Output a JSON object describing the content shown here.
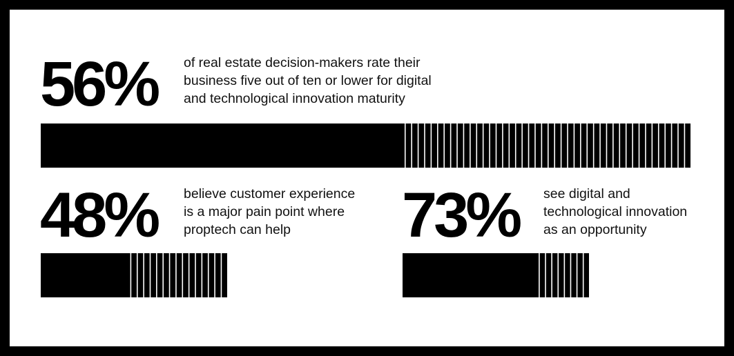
{
  "colors": {
    "background": "#000000",
    "card": "#ffffff",
    "ink": "#000000"
  },
  "chart_data": [
    {
      "type": "bar",
      "value": 56,
      "value_label": "56%",
      "description_lines": [
        "of real estate decision-makers rate their",
        "business five out of ten or lower for digital",
        "and technological innovation maturity"
      ]
    },
    {
      "type": "bar",
      "value": 48,
      "value_label": "48%",
      "description_lines": [
        "believe customer experience",
        "is a major pain point where",
        "proptech can help"
      ]
    },
    {
      "type": "bar",
      "value": 73,
      "value_label": "73%",
      "description_lines": [
        "see digital and",
        "technological innovation",
        "as an opportunity"
      ]
    }
  ]
}
